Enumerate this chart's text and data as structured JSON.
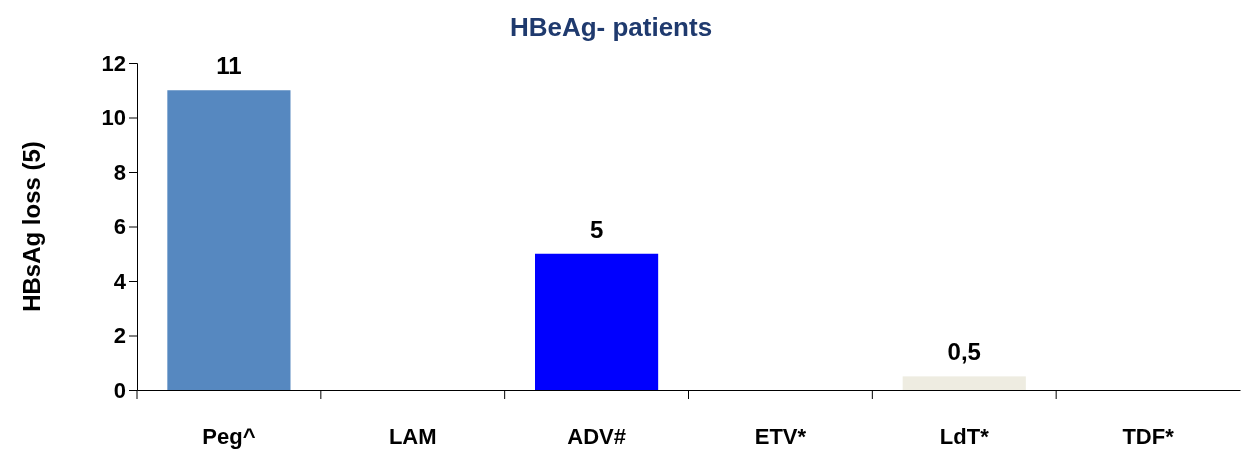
{
  "chart_data": {
    "type": "bar",
    "title": "HBeAg- patients",
    "ylabel": "HBsAg loss (5)",
    "categories": [
      "Peg^",
      "LAM",
      "ADV#",
      "ETV*",
      "LdT*",
      "TDF*"
    ],
    "values": [
      11,
      0,
      5,
      0,
      0.5,
      0
    ],
    "colors": [
      "#5688c0",
      "#5688c0",
      "#0000ff",
      "#0000ff",
      "#eeece1",
      "#eeece1"
    ],
    "value_labels": [
      "11",
      null,
      "5",
      null,
      "0,5",
      null
    ],
    "ylim": [
      0,
      12
    ],
    "yticks": [
      0,
      2,
      4,
      6,
      8,
      10,
      12
    ]
  }
}
